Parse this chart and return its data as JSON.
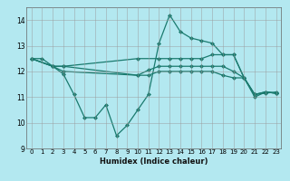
{
  "xlabel": "Humidex (Indice chaleur)",
  "bg_color": "#b3e8f0",
  "line_color": "#1a7a6e",
  "xlim": [
    -0.5,
    23.5
  ],
  "ylim": [
    9,
    14.5
  ],
  "yticks": [
    9,
    10,
    11,
    12,
    13,
    14
  ],
  "xticks": [
    0,
    1,
    2,
    3,
    4,
    5,
    6,
    7,
    8,
    9,
    10,
    11,
    12,
    13,
    14,
    15,
    16,
    17,
    18,
    19,
    20,
    21,
    22,
    23
  ],
  "grid_color": "#999999",
  "marker": "D",
  "marker_size": 2.0,
  "linewidth": 0.9,
  "lines": [
    {
      "x": [
        0,
        1,
        2,
        3,
        4,
        5,
        6,
        7,
        8,
        9,
        10,
        11,
        12,
        13,
        14,
        15,
        16,
        17,
        18,
        19,
        20,
        21,
        22,
        23
      ],
      "y": [
        12.5,
        12.5,
        12.2,
        11.9,
        11.1,
        10.2,
        10.2,
        10.7,
        9.5,
        9.9,
        10.5,
        11.1,
        13.1,
        14.2,
        13.55,
        13.3,
        13.2,
        13.1,
        12.65,
        12.65,
        11.75,
        11.0,
        11.2,
        11.15
      ]
    },
    {
      "x": [
        0,
        2,
        3,
        10,
        12,
        13,
        14,
        15,
        16,
        17,
        18,
        19,
        20,
        21,
        22,
        23
      ],
      "y": [
        12.5,
        12.2,
        12.2,
        12.5,
        12.5,
        12.5,
        12.5,
        12.5,
        12.5,
        12.65,
        12.65,
        12.65,
        11.75,
        11.1,
        11.2,
        11.15
      ]
    },
    {
      "x": [
        0,
        2,
        3,
        10,
        11,
        12,
        13,
        14,
        15,
        16,
        17,
        18,
        19,
        20,
        21,
        22,
        23
      ],
      "y": [
        12.5,
        12.2,
        12.2,
        11.85,
        12.05,
        12.2,
        12.2,
        12.2,
        12.2,
        12.2,
        12.2,
        12.2,
        12.0,
        11.75,
        11.1,
        11.2,
        11.15
      ]
    },
    {
      "x": [
        0,
        2,
        3,
        10,
        11,
        12,
        13,
        14,
        15,
        16,
        17,
        18,
        19,
        20,
        21,
        22,
        23
      ],
      "y": [
        12.5,
        12.2,
        12.0,
        11.85,
        11.85,
        12.0,
        12.0,
        12.0,
        12.0,
        12.0,
        12.0,
        11.85,
        11.75,
        11.75,
        11.1,
        11.15,
        11.2
      ]
    }
  ]
}
